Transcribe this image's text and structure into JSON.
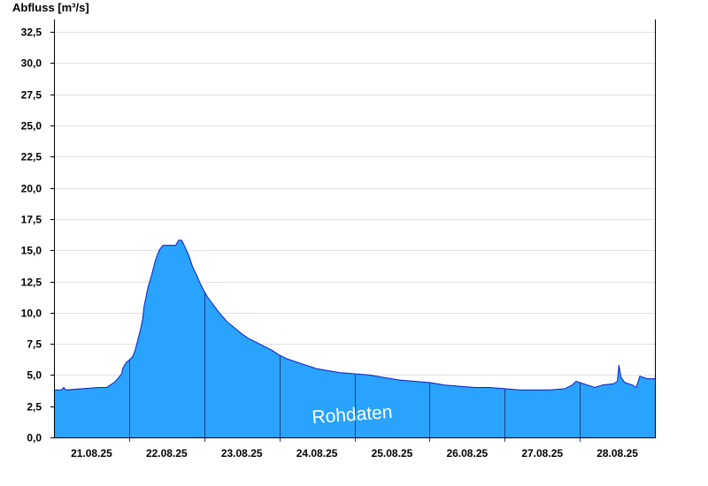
{
  "chart_data": {
    "type": "area",
    "ylabel": "Abfluss [m³/s]",
    "watermark": "Rohdaten",
    "ylim": [
      0,
      33.5
    ],
    "y_ticks": [
      "0,0",
      "2,5",
      "5,0",
      "7,5",
      "10,0",
      "12,5",
      "15,0",
      "17,5",
      "20,0",
      "22,5",
      "25,0",
      "27,5",
      "30,0",
      "32,5"
    ],
    "y_tick_values": [
      0,
      2.5,
      5,
      7.5,
      10,
      12.5,
      15,
      17.5,
      20,
      22.5,
      25,
      27.5,
      30,
      32.5
    ],
    "x_tick_labels": [
      "21.08.25",
      "22.08.25",
      "23.08.25",
      "24.08.25",
      "25.08.25",
      "26.08.25",
      "27.08.25",
      "28.08.25"
    ],
    "xlim_days": [
      0,
      8
    ],
    "grid": true,
    "colors": {
      "fill": "#29a3fb",
      "line": "#0a1fc8",
      "grid": "#e0e0e0",
      "day_line": "#1c3f86",
      "axis": "#000000"
    },
    "series": [
      {
        "x_days": [
          0,
          0.1,
          0.13,
          0.16,
          0.6,
          0.7,
          0.75,
          0.8,
          0.85,
          0.9,
          0.92,
          0.96,
          1.0,
          1.05,
          1.08,
          1.15,
          1.18,
          1.2,
          1.25,
          1.3,
          1.35,
          1.4,
          1.45,
          1.5,
          1.55,
          1.62,
          1.66,
          1.7,
          1.75,
          1.8,
          1.85,
          1.9,
          1.95,
          2.0,
          2.05,
          2.1,
          2.2,
          2.3,
          2.4,
          2.5,
          2.6,
          2.7,
          2.8,
          2.9,
          3.0,
          3.1,
          3.2,
          3.3,
          3.4,
          3.5,
          3.6,
          3.8,
          4.0,
          4.2,
          4.4,
          4.6,
          4.8,
          5.0,
          5.2,
          5.4,
          5.6,
          5.8,
          6.0,
          6.2,
          6.4,
          6.6,
          6.8,
          6.9,
          6.95,
          7.0,
          7.1,
          7.2,
          7.3,
          7.45,
          7.5,
          7.52,
          7.55,
          7.6,
          7.7,
          7.75,
          7.8,
          7.9,
          8.0
        ],
        "y": [
          3.8,
          3.8,
          4.0,
          3.8,
          4.0,
          4.0,
          4.2,
          4.4,
          4.7,
          5.1,
          5.6,
          6.0,
          6.2,
          6.5,
          7.0,
          8.6,
          9.5,
          10.5,
          12.0,
          13.0,
          14.2,
          15.0,
          15.4,
          15.4,
          15.4,
          15.4,
          15.8,
          15.8,
          15.2,
          14.5,
          13.6,
          13.0,
          12.3,
          11.7,
          11.2,
          10.8,
          10.0,
          9.3,
          8.8,
          8.3,
          7.9,
          7.6,
          7.3,
          7.0,
          6.6,
          6.3,
          6.1,
          5.9,
          5.7,
          5.5,
          5.4,
          5.2,
          5.1,
          5.0,
          4.8,
          4.6,
          4.5,
          4.4,
          4.2,
          4.1,
          4.0,
          4.0,
          3.9,
          3.8,
          3.8,
          3.8,
          3.9,
          4.2,
          4.5,
          4.4,
          4.2,
          4.0,
          4.2,
          4.3,
          4.5,
          5.8,
          4.8,
          4.4,
          4.2,
          4.0,
          4.9,
          4.7,
          4.7
        ]
      }
    ]
  }
}
